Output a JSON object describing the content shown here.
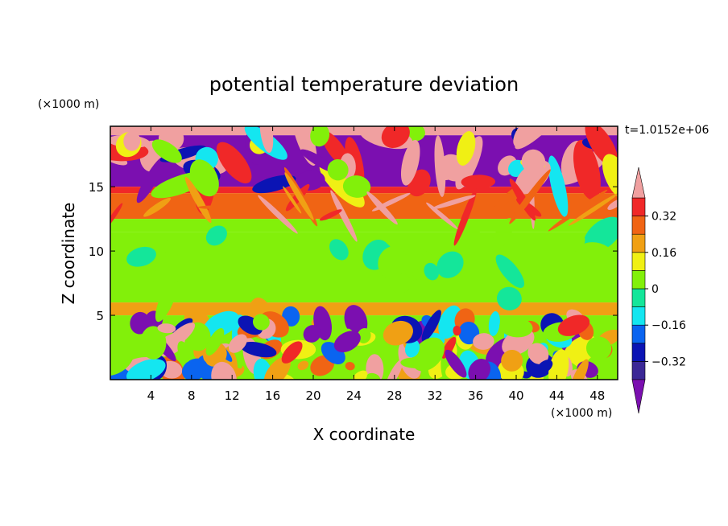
{
  "chart_data": {
    "type": "heatmap",
    "title": "potential temperature deviation",
    "xlabel": "X coordinate",
    "ylabel": "Z coordinate",
    "x_unit_label": "(×1000 m)",
    "y_unit_label": "(×1000 m)",
    "time_label": "t=1.0152e+06",
    "xlim": [
      0,
      50
    ],
    "ylim": [
      0,
      19.7
    ],
    "x_ticks": [
      4,
      8,
      12,
      16,
      20,
      24,
      28,
      32,
      36,
      40,
      44,
      48
    ],
    "x_tick_labels": [
      "4",
      "8",
      "12",
      "16",
      "20",
      "24",
      "28",
      "32",
      "36",
      "40",
      "44",
      "48"
    ],
    "y_ticks": [
      5,
      10,
      15
    ],
    "y_tick_labels": [
      "5",
      "10",
      "15"
    ],
    "colorbar": {
      "levels": [
        -0.4,
        -0.32,
        -0.24,
        -0.16,
        -0.08,
        0,
        0.08,
        0.16,
        0.24,
        0.32,
        0.4
      ],
      "colors": [
        "#7B0FB0",
        "#3B2896",
        "#0B14B4",
        "#0A64F0",
        "#14E6F0",
        "#14E69A",
        "#82F00A",
        "#F0F014",
        "#F0A014",
        "#F06414",
        "#F02828",
        "#F0A0A0"
      ],
      "tick_values": [
        0.32,
        0.16,
        0,
        -0.16,
        -0.32
      ],
      "tick_labels": [
        "0.32",
        "0.16",
        "0",
        "−0.16",
        "−0.32"
      ],
      "extend": "both"
    },
    "field_layers": [
      {
        "z_range": [
          19.0,
          19.7
        ],
        "value": 0.44,
        "note_level": "above 0.4"
      },
      {
        "z_range": [
          15.0,
          19.0
        ],
        "value": -0.44
      },
      {
        "z_range": [
          14.5,
          15.0
        ],
        "value": 0.38
      },
      {
        "z_range": [
          12.5,
          14.5
        ],
        "value": 0.3
      },
      {
        "z_range": [
          11.5,
          12.5
        ],
        "value": 0.05
      },
      {
        "z_range": [
          6.0,
          11.5
        ],
        "value": 0.03
      },
      {
        "z_range": [
          5.0,
          6.0
        ],
        "value": 0.2
      },
      {
        "z_range": [
          0.0,
          5.0
        ],
        "value": 0.0
      }
    ]
  }
}
